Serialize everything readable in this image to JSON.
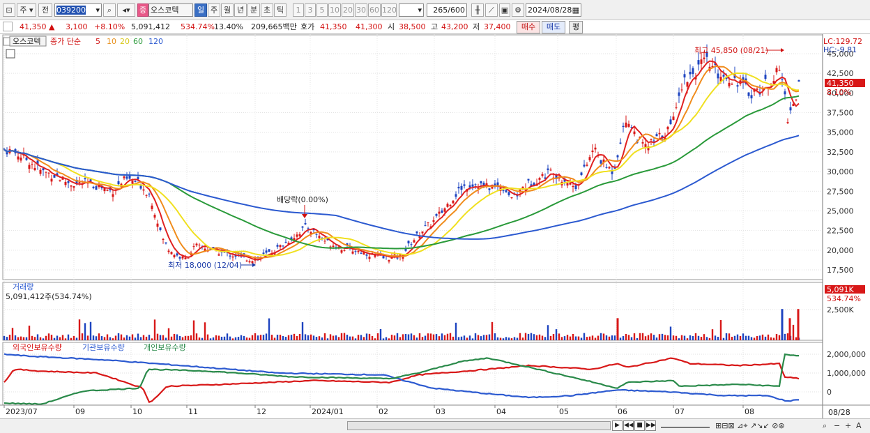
{
  "toolbar": {
    "period_main": "주",
    "prev_label": "전",
    "stock_code": "039200",
    "market_badge": "증",
    "stock_name": "오스코텍",
    "periods": [
      "일",
      "주",
      "월",
      "년",
      "분",
      "초",
      "틱"
    ],
    "active_period": "일",
    "minute_options": [
      "1",
      "3",
      "5",
      "10",
      "20",
      "30",
      "60",
      "120"
    ],
    "count_value": "265",
    "count_total": "/600",
    "date": "2024/08/28"
  },
  "quote": {
    "price": "41,350",
    "change_arrow": "▲",
    "change": "3,100",
    "change_pct": "+8.10%",
    "volume": "5,091,412",
    "volume_ratio": "534.74%",
    "turnover": "13.40%",
    "amount": "209,665백만",
    "hoga_label": "호가",
    "hoga_ask": "41,350",
    "hoga_bid": "41,300",
    "open_label": "시",
    "open": "38,500",
    "high_label": "고",
    "high": "43,200",
    "low_label": "저",
    "low": "37,400",
    "buy_label": "매수",
    "sell_label": "매도",
    "eval_label": "평"
  },
  "price_panel": {
    "name_tag": "오스코텍",
    "ma_label": "종가 단순",
    "ma_periods": [
      "5",
      "10",
      "20",
      "60",
      "120"
    ],
    "ma_colors": [
      "#e02020",
      "#f08c1c",
      "#f0e020",
      "#2a9a3a",
      "#2c5ad0"
    ],
    "lc_label": "LC:129.72",
    "hc_label": "HC:-9.81",
    "current_price_tag": "41,350",
    "current_pct_tag": "8.10%",
    "high_annotation": "최고 45,850 (08/21)",
    "low_annotation": "최저 18,000 (12/04)",
    "dividend_annotation": "배당락(0.00%)",
    "y_ticks": [
      "45,000",
      "42,500",
      "40,000",
      "37,500",
      "35,000",
      "32,500",
      "30,000",
      "27,500",
      "25,000",
      "22,500",
      "20,000",
      "17,500"
    ]
  },
  "volume_panel": {
    "title": "거래량",
    "value_label": "5,091,412주(534.74%)",
    "current_tag": "5,091K",
    "current_pct_tag": "534.74%",
    "y_ticks": [
      "2,500K"
    ]
  },
  "holding_panel": {
    "series_labels": [
      "외국인보유수량",
      "기관보유수량",
      "개인보유수량"
    ],
    "series_colors": [
      "#d81818",
      "#2c5ad0",
      "#2a8a4a"
    ],
    "y_ticks": [
      "2,000,000",
      "1,000,000",
      "0"
    ]
  },
  "x_axis": {
    "labels": [
      "2023/07",
      "09",
      "10",
      "11",
      "12",
      "2024/01",
      "02",
      "03",
      "04",
      "05",
      "06",
      "07",
      "08"
    ],
    "right_label": "08/28"
  },
  "bottom_bar": {
    "icons": [
      "scroll-right",
      "first",
      "prev",
      "stop",
      "next",
      "zoom-out",
      "zoom-in",
      "font"
    ]
  }
}
